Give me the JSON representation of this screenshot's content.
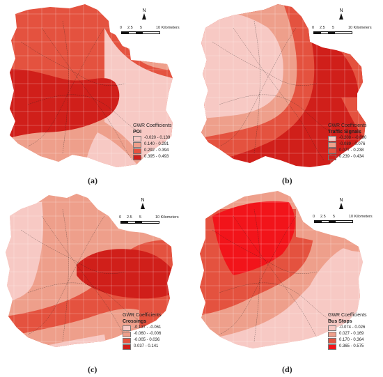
{
  "panels": [
    {
      "caption": "(a)",
      "legend_title": "GWR Coefficients",
      "variable": "POI",
      "classes": [
        {
          "range": "-0.020 - 0.139",
          "color": "#f7c9c4"
        },
        {
          "range": "0.140 - 0.291",
          "color": "#ee9f8b"
        },
        {
          "range": "0.292 - 0.394",
          "color": "#e4523f"
        },
        {
          "range": "0.395 - 0.493",
          "color": "#d01f1a"
        }
      ],
      "scale": {
        "ticks": [
          "0",
          "2.5",
          "5",
          "10 Kilometers"
        ]
      },
      "north": "N"
    },
    {
      "caption": "(b)",
      "legend_title": "GWR Coefficients",
      "variable": "Traffic Signals",
      "classes": [
        {
          "range": "-0.208 - -0.090",
          "color": "#f7c9c4"
        },
        {
          "range": "-0.089 - 0.076",
          "color": "#ee9f8b"
        },
        {
          "range": "0.077 - 0.238",
          "color": "#e4523f"
        },
        {
          "range": "0.239 - 0.434",
          "color": "#d01f1a"
        }
      ],
      "scale": {
        "ticks": [
          "0",
          "2.5",
          "5",
          "10 Kilometers"
        ]
      },
      "north": "N"
    },
    {
      "caption": "(c)",
      "legend_title": "GWR Coefficients",
      "variable": "Crossings",
      "classes": [
        {
          "range": "-0.137 - -0.061",
          "color": "#f7c9c4"
        },
        {
          "range": "-0.060 - -0.006",
          "color": "#ee9f8b"
        },
        {
          "range": "-0.005 - 0.036",
          "color": "#e4523f"
        },
        {
          "range": "0.037 - 0.141",
          "color": "#d01f1a"
        }
      ],
      "scale": {
        "ticks": [
          "0",
          "2.5",
          "5",
          "10 Kilometers"
        ]
      },
      "north": "N"
    },
    {
      "caption": "(d)",
      "legend_title": "GWR Coefficients",
      "variable": "Bus Stops",
      "classes": [
        {
          "range": "-0.074 - 0.026",
          "color": "#f7c9c4"
        },
        {
          "range": "0.027 - 0.169",
          "color": "#ee9f8b"
        },
        {
          "range": "0.170 - 0.364",
          "color": "#e4523f"
        },
        {
          "range": "0.365 - 0.575",
          "color": "#f2141a"
        }
      ],
      "scale": {
        "ticks": [
          "0",
          "2.5",
          "5",
          "10 Kilometers"
        ]
      },
      "north": "N"
    }
  ]
}
